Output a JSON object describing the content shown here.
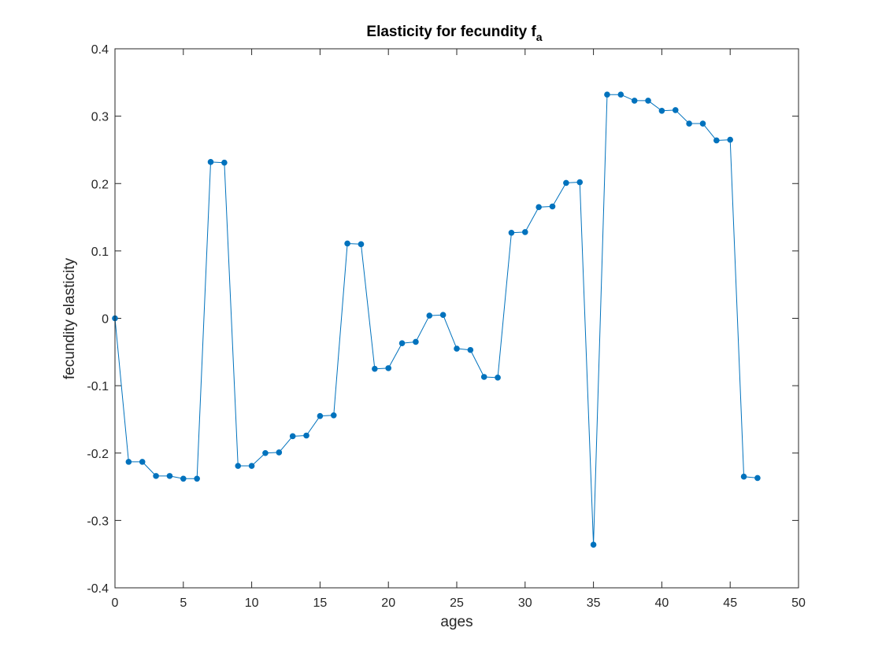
{
  "chart_data": {
    "type": "line",
    "title": "Elasticity for fecundity f",
    "title_subscript": "a",
    "xlabel": "ages",
    "ylabel": "fecundity elasticity",
    "xlim": [
      0,
      50
    ],
    "ylim": [
      -0.4,
      0.4
    ],
    "xticks": [
      0,
      5,
      10,
      15,
      20,
      25,
      30,
      35,
      40,
      45,
      50
    ],
    "yticks": [
      -0.4,
      -0.3,
      -0.2,
      -0.1,
      0,
      0.1,
      0.2,
      0.3,
      0.4
    ],
    "xtick_labels": [
      "0",
      "5",
      "10",
      "15",
      "20",
      "25",
      "30",
      "35",
      "40",
      "45",
      "50"
    ],
    "ytick_labels": [
      "-0.4",
      "-0.3",
      "-0.2",
      "-0.1",
      "0",
      "0.1",
      "0.2",
      "0.3",
      "0.4"
    ],
    "grid": false,
    "box": true,
    "marker": "circle",
    "series": [
      {
        "color": "#0072BD",
        "x": [
          0,
          1,
          2,
          3,
          4,
          5,
          6,
          7,
          8,
          9,
          10,
          11,
          12,
          13,
          14,
          15,
          16,
          17,
          18,
          19,
          20,
          21,
          22,
          23,
          24,
          25,
          26,
          27,
          28,
          29,
          30,
          31,
          32,
          33,
          34,
          35,
          36,
          37,
          38,
          39,
          40,
          41,
          42,
          43,
          44,
          45,
          46,
          47
        ],
        "y": [
          0,
          -0.213,
          -0.213,
          -0.234,
          -0.234,
          -0.238,
          -0.238,
          0.232,
          0.231,
          -0.219,
          -0.219,
          -0.2,
          -0.199,
          -0.175,
          -0.174,
          -0.145,
          -0.144,
          0.111,
          0.11,
          -0.075,
          -0.074,
          -0.037,
          -0.035,
          0.004,
          0.005,
          -0.045,
          -0.047,
          -0.087,
          -0.088,
          0.127,
          0.128,
          0.165,
          0.166,
          0.201,
          0.202,
          -0.336,
          0.332,
          0.332,
          0.323,
          0.323,
          0.308,
          0.309,
          0.289,
          0.289,
          0.264,
          0.265,
          -0.235,
          -0.237
        ]
      }
    ]
  }
}
